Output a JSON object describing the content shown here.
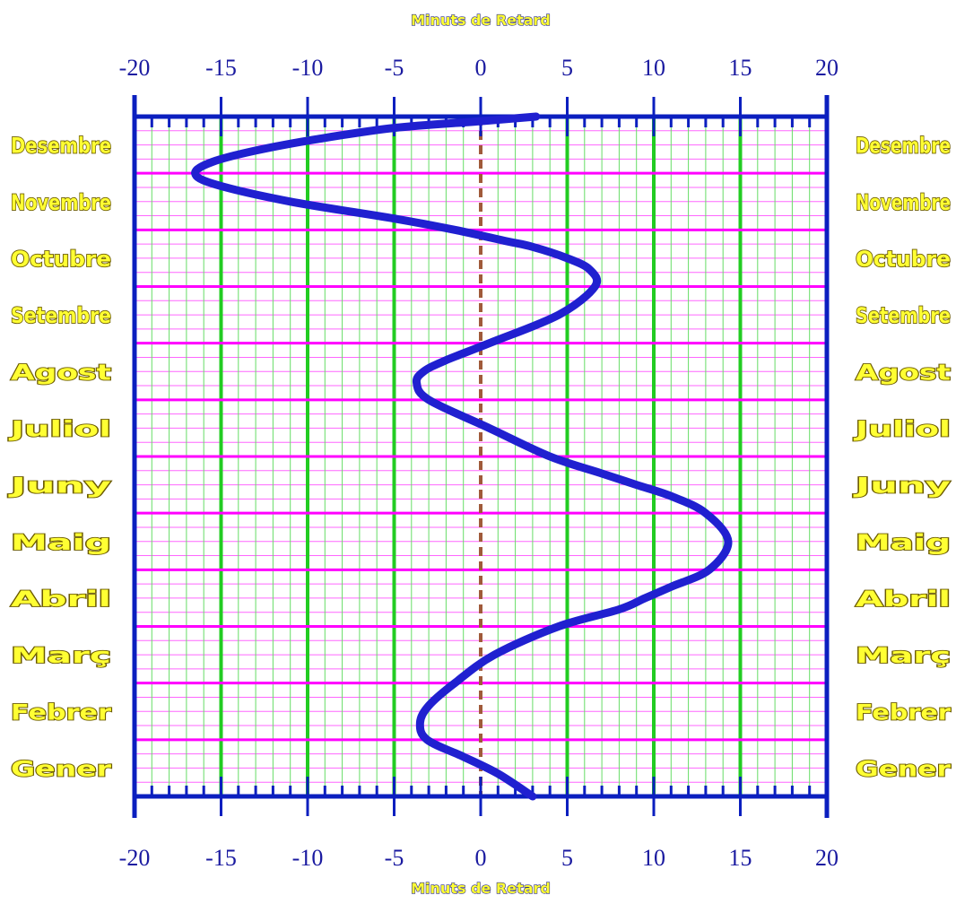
{
  "chart_data": {
    "type": "line",
    "title": "",
    "xlabel": "Minuts de Retard",
    "ylabel": "",
    "xlim": [
      -20,
      20
    ],
    "xticks": [
      -20,
      -15,
      -10,
      -5,
      0,
      5,
      10,
      15,
      20
    ],
    "xtick_labels": [
      "-20",
      "-15",
      "-10",
      "-5",
      "0",
      "5",
      "10",
      "15",
      "20"
    ],
    "months": [
      "Desembre",
      "Novembre",
      "Octubre",
      "Setembre",
      "Agost",
      "Juliol",
      "Juny",
      "Maig",
      "Abril",
      "Març",
      "Febrer",
      "Gener"
    ],
    "month_axis_order": "top-to-bottom",
    "grid": true,
    "series": [
      {
        "month_position": [
          0.0,
          0.08,
          0.2,
          0.4,
          0.6,
          0.8,
          1.0,
          1.2,
          1.5,
          1.8,
          2.0,
          2.2,
          2.3,
          2.5,
          2.7,
          3.0,
          3.5,
          4.0,
          4.3,
          4.5,
          4.7,
          5.0,
          5.5,
          6.0,
          6.3,
          6.5,
          6.7,
          7.0,
          7.5,
          8.0,
          8.3,
          8.5,
          8.7,
          9.0,
          9.5,
          10.0,
          10.4,
          10.7,
          11.0,
          11.3,
          11.6,
          12.0
        ],
        "minutes": [
          3.2,
          0.0,
          -5.0,
          -9.5,
          -13.0,
          -15.5,
          -16.5,
          -15.3,
          -11.0,
          -5.0,
          -1.5,
          1.5,
          3.0,
          5.0,
          6.3,
          6.6,
          4.5,
          0.5,
          -2.0,
          -3.3,
          -3.7,
          -3.0,
          0.5,
          4.0,
          7.0,
          9.0,
          11.0,
          13.0,
          14.3,
          13.2,
          11.0,
          9.5,
          8.0,
          4.5,
          0.8,
          -1.5,
          -3.0,
          -3.5,
          -3.1,
          -1.0,
          1.0,
          3.0
        ]
      }
    ],
    "colors": {
      "curve": "#2020d0",
      "frame": "#0b1fbf",
      "major_vertical_grid": "#22cc22",
      "minor_vertical_grid": "#66dd66",
      "month_boundary_lines": "#ff00ff",
      "minor_horizontal_grid": "#ff66ff",
      "zero_line": "#a05a3a",
      "month_label_fill": "#ffff33",
      "axis_title_fill": "#ffff33",
      "tick_label_color": "#1a1aa0"
    }
  }
}
